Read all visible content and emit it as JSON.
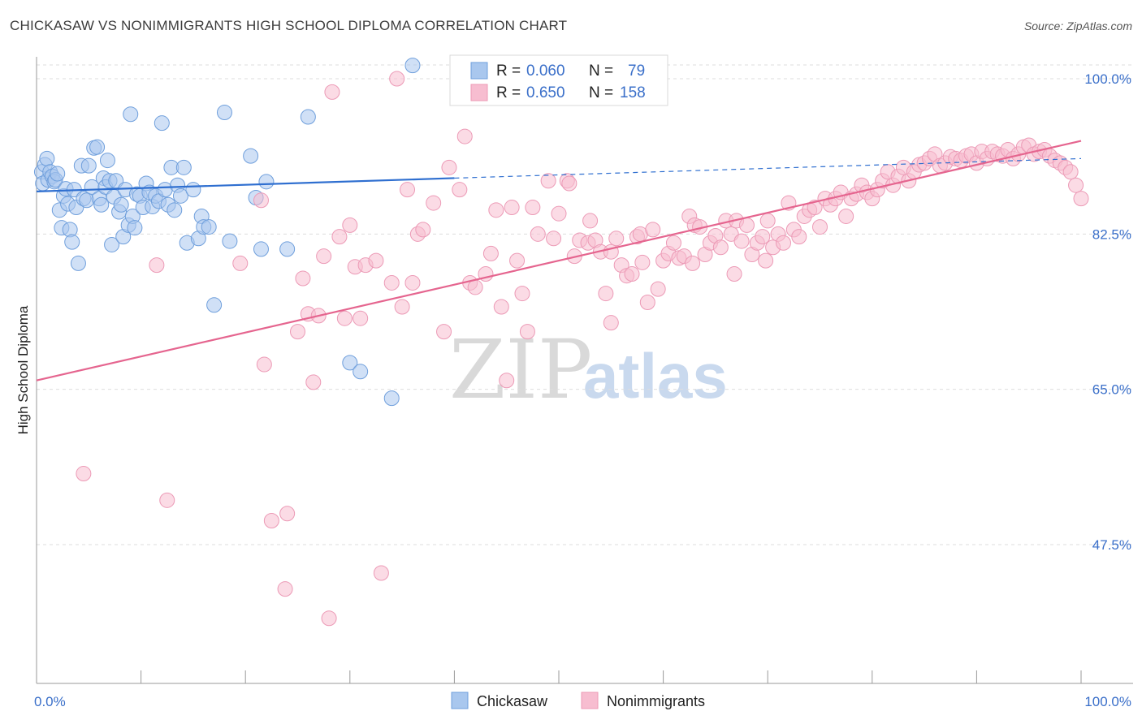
{
  "title": "CHICKASAW VS NONIMMIGRANTS HIGH SCHOOL DIPLOMA CORRELATION CHART",
  "source": "Source: ZipAtlas.com",
  "watermark": {
    "zip": "ZIP",
    "atlas": "atlas"
  },
  "colors": {
    "chickasaw_fill": "#a9c7ee",
    "chickasaw_stroke": "#6f9fdc",
    "chickasaw_line": "#2f6fd0",
    "nonimm_fill": "#f7bdd0",
    "nonimm_stroke": "#ec9ab6",
    "nonimm_line": "#e5658f",
    "axis_label": "#3a6fc9",
    "grid": "#dddddd"
  },
  "legend": {
    "rows": [
      {
        "r_label": "R =",
        "r_value": "0.060",
        "n_label": "N =",
        "n_value": "79"
      },
      {
        "r_label": "R =",
        "r_value": "0.650",
        "n_label": "N =",
        "n_value": "158"
      }
    ]
  },
  "bottom_legend": [
    "Chickasaw",
    "Nonimmigrants"
  ],
  "chart_data": {
    "type": "scatter",
    "title": "CHICKASAW VS NONIMMIGRANTS HIGH SCHOOL DIPLOMA CORRELATION CHART",
    "xlabel": "",
    "ylabel": "High School Diploma",
    "xlim": [
      0,
      100
    ],
    "ylim": [
      30,
      101.5
    ],
    "x_tick_labels": [
      "0.0%",
      "100.0%"
    ],
    "y_ticks": [
      100,
      82.5,
      65,
      47.5
    ],
    "y_tick_labels": [
      "100.0%",
      "82.5%",
      "65.0%",
      "47.5%"
    ],
    "grid": true,
    "legend_placement": "top-center",
    "series": [
      {
        "name": "Chickasaw",
        "r": 0.06,
        "n": 79,
        "trend": {
          "x": [
            0,
            40,
            100
          ],
          "y": [
            87.3,
            88.8,
            91.0
          ],
          "solid_until": 40
        },
        "points": [
          [
            0.5,
            89.5
          ],
          [
            0.6,
            88.2
          ],
          [
            0.8,
            90.3
          ],
          [
            1.0,
            91.0
          ],
          [
            1.1,
            88.6
          ],
          [
            1.3,
            89.5
          ],
          [
            1.5,
            89.0
          ],
          [
            1.7,
            88.4
          ],
          [
            1.8,
            88.6
          ],
          [
            2.0,
            89.3
          ],
          [
            2.2,
            85.2
          ],
          [
            2.4,
            83.2
          ],
          [
            2.6,
            86.8
          ],
          [
            2.8,
            87.6
          ],
          [
            3.0,
            85.9
          ],
          [
            3.2,
            83.0
          ],
          [
            3.4,
            81.6
          ],
          [
            3.6,
            87.5
          ],
          [
            3.8,
            85.5
          ],
          [
            4.0,
            79.2
          ],
          [
            4.3,
            90.2
          ],
          [
            4.5,
            86.5
          ],
          [
            4.8,
            86.3
          ],
          [
            5.0,
            90.2
          ],
          [
            5.3,
            87.8
          ],
          [
            5.5,
            92.2
          ],
          [
            5.8,
            92.3
          ],
          [
            6.0,
            86.5
          ],
          [
            6.2,
            85.8
          ],
          [
            6.4,
            88.8
          ],
          [
            6.6,
            87.8
          ],
          [
            6.8,
            90.8
          ],
          [
            7.0,
            88.5
          ],
          [
            7.2,
            81.3
          ],
          [
            7.4,
            86.7
          ],
          [
            7.6,
            88.5
          ],
          [
            7.9,
            85.0
          ],
          [
            8.1,
            85.8
          ],
          [
            8.3,
            82.2
          ],
          [
            8.5,
            87.5
          ],
          [
            8.8,
            83.5
          ],
          [
            9.0,
            96.0
          ],
          [
            9.2,
            84.5
          ],
          [
            9.4,
            83.2
          ],
          [
            9.6,
            87.0
          ],
          [
            9.9,
            86.8
          ],
          [
            10.2,
            85.5
          ],
          [
            10.5,
            88.2
          ],
          [
            10.8,
            87.2
          ],
          [
            11.1,
            85.6
          ],
          [
            11.4,
            86.8
          ],
          [
            11.7,
            86.2
          ],
          [
            12.0,
            95.0
          ],
          [
            12.3,
            87.5
          ],
          [
            12.6,
            85.8
          ],
          [
            12.9,
            90.0
          ],
          [
            13.2,
            85.2
          ],
          [
            13.5,
            88.0
          ],
          [
            13.8,
            86.8
          ],
          [
            14.1,
            90.0
          ],
          [
            14.4,
            81.5
          ],
          [
            15.0,
            87.5
          ],
          [
            15.5,
            82.0
          ],
          [
            15.8,
            84.5
          ],
          [
            16.0,
            83.3
          ],
          [
            16.5,
            83.3
          ],
          [
            17.0,
            74.5
          ],
          [
            18.0,
            96.2
          ],
          [
            18.5,
            81.7
          ],
          [
            20.5,
            91.3
          ],
          [
            21.0,
            86.6
          ],
          [
            21.5,
            80.8
          ],
          [
            22.0,
            88.4
          ],
          [
            24.0,
            80.8
          ],
          [
            26.0,
            95.7
          ],
          [
            30.0,
            68.0
          ],
          [
            31.0,
            67.0
          ],
          [
            34.0,
            64.0
          ],
          [
            36.0,
            101.5
          ]
        ]
      },
      {
        "name": "Nonimmigrants",
        "r": 0.65,
        "n": 158,
        "trend": {
          "x": [
            0,
            100
          ],
          "y": [
            66.0,
            93.0
          ]
        },
        "points": [
          [
            4.5,
            55.5
          ],
          [
            11.5,
            79.0
          ],
          [
            12.5,
            52.5
          ],
          [
            19.5,
            79.2
          ],
          [
            21.5,
            86.3
          ],
          [
            21.8,
            67.8
          ],
          [
            22.5,
            50.2
          ],
          [
            23.8,
            42.5
          ],
          [
            24.0,
            51.0
          ],
          [
            25.0,
            71.5
          ],
          [
            25.5,
            77.5
          ],
          [
            26.0,
            73.5
          ],
          [
            26.5,
            65.8
          ],
          [
            27.0,
            73.3
          ],
          [
            27.5,
            80.0
          ],
          [
            28.0,
            39.2
          ],
          [
            28.3,
            98.5
          ],
          [
            29.0,
            82.2
          ],
          [
            29.5,
            73.0
          ],
          [
            30.0,
            83.5
          ],
          [
            30.5,
            78.8
          ],
          [
            31.0,
            73.0
          ],
          [
            31.5,
            79.0
          ],
          [
            32.5,
            79.5
          ],
          [
            33.0,
            44.3
          ],
          [
            34.0,
            77.0
          ],
          [
            34.5,
            100.0
          ],
          [
            35.0,
            74.3
          ],
          [
            35.5,
            87.5
          ],
          [
            36.0,
            77.0
          ],
          [
            36.5,
            82.5
          ],
          [
            37.0,
            83.0
          ],
          [
            38.0,
            86.0
          ],
          [
            39.0,
            71.5
          ],
          [
            39.5,
            90.0
          ],
          [
            40.5,
            87.5
          ],
          [
            41.0,
            93.5
          ],
          [
            41.5,
            77.0
          ],
          [
            42.0,
            76.5
          ],
          [
            43.0,
            78.0
          ],
          [
            43.5,
            80.3
          ],
          [
            44.0,
            85.2
          ],
          [
            44.5,
            74.3
          ],
          [
            45.0,
            66.0
          ],
          [
            45.5,
            85.5
          ],
          [
            46.0,
            79.5
          ],
          [
            46.5,
            75.8
          ],
          [
            47.0,
            71.5
          ],
          [
            47.5,
            85.5
          ],
          [
            48.0,
            82.5
          ],
          [
            49.0,
            88.5
          ],
          [
            49.5,
            82.0
          ],
          [
            50.0,
            84.8
          ],
          [
            50.8,
            88.5
          ],
          [
            51.0,
            88.2
          ],
          [
            51.5,
            80.0
          ],
          [
            52.0,
            81.8
          ],
          [
            52.8,
            81.5
          ],
          [
            53.0,
            84.0
          ],
          [
            53.5,
            81.8
          ],
          [
            54.0,
            80.5
          ],
          [
            54.5,
            75.8
          ],
          [
            55.0,
            72.5
          ],
          [
            55.5,
            82.0
          ],
          [
            56.0,
            79.0
          ],
          [
            56.5,
            77.8
          ],
          [
            57.0,
            78.0
          ],
          [
            57.5,
            82.2
          ],
          [
            57.8,
            82.5
          ],
          [
            58.5,
            74.8
          ],
          [
            59.0,
            83.0
          ],
          [
            59.5,
            76.3
          ],
          [
            60.0,
            79.5
          ],
          [
            60.5,
            80.3
          ],
          [
            61.0,
            81.5
          ],
          [
            61.5,
            79.8
          ],
          [
            62.0,
            80.0
          ],
          [
            62.5,
            84.5
          ],
          [
            63.0,
            83.5
          ],
          [
            63.5,
            83.3
          ],
          [
            64.0,
            80.2
          ],
          [
            64.5,
            81.5
          ],
          [
            65.0,
            82.3
          ],
          [
            65.5,
            81.0
          ],
          [
            66.0,
            84.0
          ],
          [
            66.5,
            82.5
          ],
          [
            67.0,
            84.0
          ],
          [
            67.5,
            81.7
          ],
          [
            68.0,
            83.5
          ],
          [
            68.5,
            80.2
          ],
          [
            69.0,
            81.5
          ],
          [
            69.5,
            82.2
          ],
          [
            70.0,
            84.0
          ],
          [
            70.5,
            81.0
          ],
          [
            71.0,
            82.5
          ],
          [
            71.5,
            81.5
          ],
          [
            72.0,
            86.0
          ],
          [
            72.5,
            83.0
          ],
          [
            73.0,
            82.2
          ],
          [
            73.5,
            84.5
          ],
          [
            74.0,
            85.2
          ],
          [
            74.5,
            85.5
          ],
          [
            75.0,
            83.3
          ],
          [
            75.5,
            86.5
          ],
          [
            76.0,
            85.8
          ],
          [
            76.5,
            86.5
          ],
          [
            77.0,
            87.2
          ],
          [
            77.5,
            84.5
          ],
          [
            78.0,
            86.5
          ],
          [
            78.5,
            87.0
          ],
          [
            79.0,
            88.0
          ],
          [
            79.5,
            87.2
          ],
          [
            80.0,
            86.5
          ],
          [
            80.5,
            87.5
          ],
          [
            81.0,
            88.5
          ],
          [
            81.5,
            89.5
          ],
          [
            82.0,
            88.0
          ],
          [
            82.5,
            89.0
          ],
          [
            83.0,
            90.0
          ],
          [
            83.5,
            88.5
          ],
          [
            84.0,
            89.5
          ],
          [
            84.5,
            90.3
          ],
          [
            85.0,
            90.5
          ],
          [
            85.5,
            91.0
          ],
          [
            86.0,
            91.5
          ],
          [
            86.5,
            90.2
          ],
          [
            87.0,
            90.5
          ],
          [
            87.5,
            91.2
          ],
          [
            88.0,
            91.0
          ],
          [
            88.5,
            90.8
          ],
          [
            89.0,
            91.3
          ],
          [
            89.5,
            91.5
          ],
          [
            90.0,
            90.5
          ],
          [
            90.5,
            91.8
          ],
          [
            91.0,
            91.0
          ],
          [
            91.5,
            91.8
          ],
          [
            92.0,
            91.5
          ],
          [
            92.5,
            91.3
          ],
          [
            93.0,
            92.0
          ],
          [
            93.5,
            91.0
          ],
          [
            94.0,
            91.5
          ],
          [
            94.5,
            92.3
          ],
          [
            95.0,
            92.5
          ],
          [
            95.5,
            91.5
          ],
          [
            96.0,
            91.8
          ],
          [
            96.5,
            92.0
          ],
          [
            97.0,
            91.3
          ],
          [
            97.5,
            90.8
          ],
          [
            98.0,
            90.5
          ],
          [
            98.5,
            90.0
          ],
          [
            99.0,
            89.5
          ],
          [
            99.5,
            88.0
          ],
          [
            100.0,
            86.5
          ],
          [
            55.0,
            80.5
          ],
          [
            58.0,
            79.3
          ],
          [
            62.8,
            79.2
          ],
          [
            66.8,
            78.0
          ],
          [
            69.8,
            79.5
          ]
        ]
      }
    ]
  }
}
